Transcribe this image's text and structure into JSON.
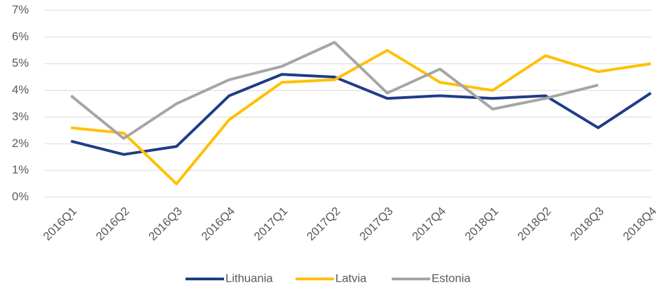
{
  "chart_data": {
    "type": "line",
    "categories": [
      "2016Q1",
      "2016Q2",
      "2016Q3",
      "2016Q4",
      "2017Q1",
      "2017Q2",
      "2017Q3",
      "2017Q4",
      "2018Q1",
      "2018Q2",
      "2018Q3",
      "2018Q4"
    ],
    "series": [
      {
        "name": "Lithuania",
        "color": "#1f3c88",
        "values": [
          2.1,
          1.6,
          1.9,
          3.8,
          4.6,
          4.5,
          3.7,
          3.8,
          3.7,
          3.8,
          2.6,
          3.9
        ]
      },
      {
        "name": "Latvia",
        "color": "#ffc000",
        "values": [
          2.6,
          2.4,
          0.5,
          2.9,
          4.3,
          4.4,
          5.5,
          4.3,
          4.0,
          5.3,
          4.7,
          5.0
        ]
      },
      {
        "name": "Estonia",
        "color": "#a5a5a5",
        "values": [
          3.8,
          2.2,
          3.5,
          4.4,
          4.9,
          5.8,
          3.9,
          4.8,
          3.3,
          3.7,
          4.2,
          null
        ]
      }
    ],
    "ylim": [
      0,
      7
    ],
    "yticks": [
      {
        "value": 0,
        "label": "0%"
      },
      {
        "value": 1,
        "label": "1%"
      },
      {
        "value": 2,
        "label": "2%"
      },
      {
        "value": 3,
        "label": "3%"
      },
      {
        "value": 4,
        "label": "4%"
      },
      {
        "value": 5,
        "label": "5%"
      },
      {
        "value": 6,
        "label": "6%"
      },
      {
        "value": 7,
        "label": "7%"
      }
    ],
    "grid": true,
    "legend": "bottom"
  }
}
